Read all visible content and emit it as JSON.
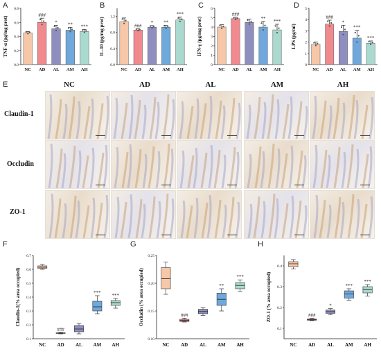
{
  "panel_letters": {
    "A": "A",
    "B": "B",
    "C": "C",
    "D": "D",
    "E": "E",
    "F": "F",
    "G": "G",
    "H": "H"
  },
  "micrograph_grid": {
    "columns": [
      "NC",
      "AD",
      "AL",
      "AM",
      "AH"
    ],
    "rows": [
      "Claudin-1",
      "Occludin",
      "ZO-1"
    ]
  },
  "colors": {
    "NC": "#f7c7a9",
    "AD": "#f08a8f",
    "AL": "#8f8fbf",
    "AM": "#6fa8dc",
    "AH": "#a9d9cf"
  },
  "chart_data": [
    {
      "id": "A",
      "type": "bar",
      "categories": [
        "NC",
        "AD",
        "AL",
        "AM",
        "AH"
      ],
      "values": [
        0.45,
        0.6,
        0.51,
        0.49,
        0.47
      ],
      "errors": [
        0.02,
        0.06,
        0.05,
        0.04,
        0.03
      ],
      "annotations": [
        "",
        "###",
        "*",
        "**",
        "***"
      ],
      "ylabel": "TNF-α (pg/mg prot)",
      "ylim": [
        0,
        0.8
      ],
      "yticks": [
        "0.0",
        "0.2",
        "0.4",
        "0.6",
        "0.8"
      ]
    },
    {
      "id": "B",
      "type": "bar",
      "categories": [
        "NC",
        "AD",
        "AL",
        "AM",
        "AH"
      ],
      "values": [
        1.07,
        0.86,
        0.93,
        0.93,
        1.11
      ],
      "errors": [
        0.09,
        0.03,
        0.04,
        0.05,
        0.07
      ],
      "annotations": [
        "",
        "###",
        "*",
        "**",
        "***"
      ],
      "ylabel": "IL-10 (pg/mg prot)",
      "ylim": [
        0,
        1.4
      ],
      "yticks": [
        "0.0",
        "0.4",
        "0.8",
        "1.2"
      ]
    },
    {
      "id": "C",
      "type": "bar",
      "categories": [
        "NC",
        "AD",
        "AL",
        "AM",
        "AH"
      ],
      "values": [
        4.0,
        4.9,
        4.5,
        4.0,
        3.7
      ],
      "errors": [
        0.25,
        0.15,
        0.35,
        0.6,
        0.6
      ],
      "annotations": [
        "",
        "###",
        "",
        "**",
        "***"
      ],
      "ylabel": "IFN-γ (pg/mg prot)",
      "ylim": [
        0,
        6
      ],
      "yticks": [
        "0",
        "1",
        "2",
        "3",
        "4",
        "5",
        "6"
      ]
    },
    {
      "id": "D",
      "type": "bar",
      "categories": [
        "NC",
        "AD",
        "AL",
        "AM",
        "AH"
      ],
      "values": [
        1.8,
        3.6,
        2.95,
        2.35,
        1.9
      ],
      "errors": [
        0.2,
        0.35,
        0.55,
        0.7,
        0.2
      ],
      "annotations": [
        "",
        "###",
        "*",
        "***",
        "***"
      ],
      "ylabel": "LPS (pg/ml)",
      "ylim": [
        0,
        5
      ],
      "yticks": [
        "0",
        "1",
        "2",
        "3",
        "4",
        "5"
      ]
    },
    {
      "id": "F",
      "type": "box",
      "categories": [
        "NC",
        "AD",
        "AL",
        "AM",
        "AH"
      ],
      "boxes": [
        {
          "min": 0.6,
          "q1": 0.607,
          "median": 0.615,
          "q3": 0.625,
          "max": 0.635
        },
        {
          "min": 0.135,
          "q1": 0.138,
          "median": 0.14,
          "q3": 0.143,
          "max": 0.146
        },
        {
          "min": 0.135,
          "q1": 0.15,
          "median": 0.17,
          "q3": 0.195,
          "max": 0.21
        },
        {
          "min": 0.28,
          "q1": 0.3,
          "median": 0.33,
          "q3": 0.37,
          "max": 0.41
        },
        {
          "min": 0.32,
          "q1": 0.34,
          "median": 0.36,
          "q3": 0.375,
          "max": 0.39
        }
      ],
      "annotations": [
        "",
        "###",
        "",
        "***",
        "***"
      ],
      "ylabel": "Claudin-1(% area occupied)",
      "ylim": [
        0.1,
        0.7
      ],
      "yticks": [
        "0.1",
        "0.2",
        "0.3",
        "0.4",
        "0.5",
        "0.6",
        "0.7"
      ]
    },
    {
      "id": "G",
      "type": "box",
      "categories": [
        "NC",
        "AD",
        "AL",
        "AM",
        "AH"
      ],
      "boxes": [
        {
          "min": 0.18,
          "q1": 0.19,
          "median": 0.208,
          "q3": 0.228,
          "max": 0.238
        },
        {
          "min": 0.13,
          "q1": 0.131,
          "median": 0.133,
          "q3": 0.135,
          "max": 0.137
        },
        {
          "min": 0.142,
          "q1": 0.145,
          "median": 0.149,
          "q3": 0.153,
          "max": 0.156
        },
        {
          "min": 0.15,
          "q1": 0.16,
          "median": 0.171,
          "q3": 0.182,
          "max": 0.19
        },
        {
          "min": 0.185,
          "q1": 0.19,
          "median": 0.196,
          "q3": 0.201,
          "max": 0.206
        }
      ],
      "annotations": [
        "",
        "###",
        "",
        "**",
        "***"
      ],
      "ylabel": "Occludin (% area occupied)",
      "ylim": [
        0.1,
        0.25
      ],
      "yticks": [
        "0.10",
        "0.15",
        "0.20",
        "0.25"
      ]
    },
    {
      "id": "H",
      "type": "box",
      "categories": [
        "NC",
        "AD",
        "AL",
        "AM",
        "AH"
      ],
      "boxes": [
        {
          "min": 0.385,
          "q1": 0.395,
          "median": 0.41,
          "q3": 0.42,
          "max": 0.43
        },
        {
          "min": 0.137,
          "q1": 0.139,
          "median": 0.142,
          "q3": 0.145,
          "max": 0.148
        },
        {
          "min": 0.165,
          "q1": 0.172,
          "median": 0.18,
          "q3": 0.188,
          "max": 0.195
        },
        {
          "min": 0.235,
          "q1": 0.245,
          "median": 0.265,
          "q3": 0.28,
          "max": 0.29
        },
        {
          "min": 0.255,
          "q1": 0.27,
          "median": 0.285,
          "q3": 0.3,
          "max": 0.31
        }
      ],
      "annotations": [
        "",
        "###",
        "*",
        "***",
        "***"
      ],
      "ylabel": "ZO-1 (% area occupied)",
      "ylim": [
        0.05,
        0.45
      ],
      "yticks": [
        "0.1",
        "0.2",
        "0.3",
        "0.4"
      ]
    }
  ]
}
